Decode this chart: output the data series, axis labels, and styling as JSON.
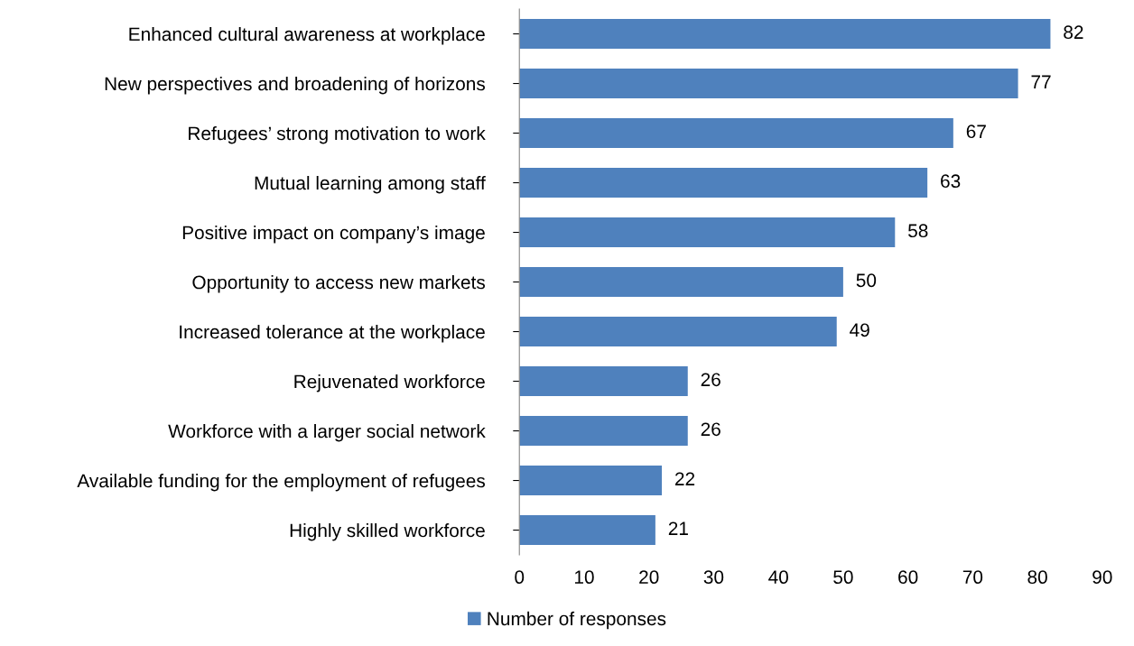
{
  "chart_data": {
    "type": "bar",
    "orientation": "horizontal",
    "categories": [
      "Enhanced cultural awareness at workplace",
      "New perspectives and broadening of horizons",
      "Refugees’ strong motivation to work",
      "Mutual learning among staff",
      "Positive impact on company’s image",
      "Opportunity to access new markets",
      "Increased tolerance at the workplace",
      "Rejuvenated workforce",
      "Workforce with a larger social network",
      "Available funding for the employment of refugees",
      "Highly skilled workforce"
    ],
    "series": [
      {
        "name": "Number of responses",
        "color": "#4f81bd",
        "values": [
          82,
          77,
          67,
          63,
          58,
          50,
          49,
          26,
          26,
          22,
          21
        ]
      }
    ],
    "xlim": [
      0,
      90
    ],
    "xticks": [
      0,
      10,
      20,
      30,
      40,
      50,
      60,
      70,
      80,
      90
    ],
    "data_labels": true,
    "grid": false,
    "legend": "bottom"
  }
}
